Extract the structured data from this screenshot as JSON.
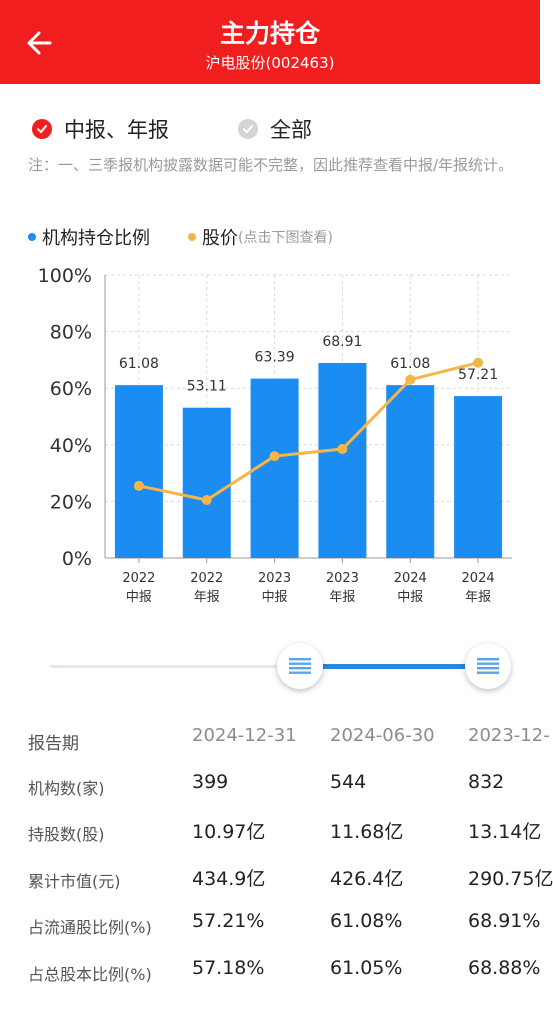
{
  "header": {
    "title": "主力持仓",
    "subtitle": "沪电股份(002463)",
    "bg": "#f01e1e"
  },
  "filters": [
    {
      "label": "中报、年报",
      "selected": true
    },
    {
      "label": "全部",
      "selected": false
    }
  ],
  "note": "注：一、三季报机构披露数据可能不完整，因此推荐查看中报/年报统计。",
  "legend": {
    "bar_label": "机构持仓比例",
    "line_label": "股价",
    "line_hint": "(点击下图查看)"
  },
  "colors": {
    "bar": "#1b8cf2",
    "line": "#f5b547",
    "accent": "#f01e1e",
    "slider": "#2b84e0"
  },
  "chart_data": {
    "type": "bar",
    "y_ticks": [
      "100%",
      "80%",
      "60%",
      "40%",
      "20%",
      "0%"
    ],
    "ylim": [
      0,
      100
    ],
    "categories": [
      {
        "year": "2022",
        "period": "中报"
      },
      {
        "year": "2022",
        "period": "年报"
      },
      {
        "year": "2023",
        "period": "中报"
      },
      {
        "year": "2023",
        "period": "年报"
      },
      {
        "year": "2024",
        "period": "中报"
      },
      {
        "year": "2024",
        "period": "年报"
      }
    ],
    "series": [
      {
        "name": "机构持仓比例",
        "type": "bar",
        "values": [
          61.08,
          53.11,
          63.39,
          68.91,
          61.08,
          57.21
        ],
        "labels": [
          "61.08",
          "53.11",
          "63.39",
          "68.91",
          "61.08",
          "57.21"
        ]
      },
      {
        "name": "股价",
        "type": "line",
        "values": [
          25.5,
          20.5,
          36,
          38.5,
          63,
          69
        ]
      }
    ],
    "grid": true
  },
  "slider": {
    "range_start": 0.55,
    "range_end": 1.0
  },
  "table": {
    "header": {
      "label": "报告期",
      "cells": [
        "2024-12-31",
        "2024-06-30",
        "2023-12-"
      ]
    },
    "rows": [
      {
        "label": "机构数(家)",
        "cells": [
          "399",
          "544",
          "832"
        ]
      },
      {
        "label": "持股数(股)",
        "cells": [
          "10.97亿",
          "11.68亿",
          "13.14亿"
        ]
      },
      {
        "label": "累计市值(元)",
        "cells": [
          "434.9亿",
          "426.4亿",
          "290.75亿"
        ]
      },
      {
        "label": "占流通股比例(%)",
        "cells": [
          "57.21%",
          "61.08%",
          "68.91%"
        ]
      },
      {
        "label": "占总股本比例(%)",
        "cells": [
          "57.18%",
          "61.05%",
          "68.88%"
        ]
      }
    ]
  }
}
